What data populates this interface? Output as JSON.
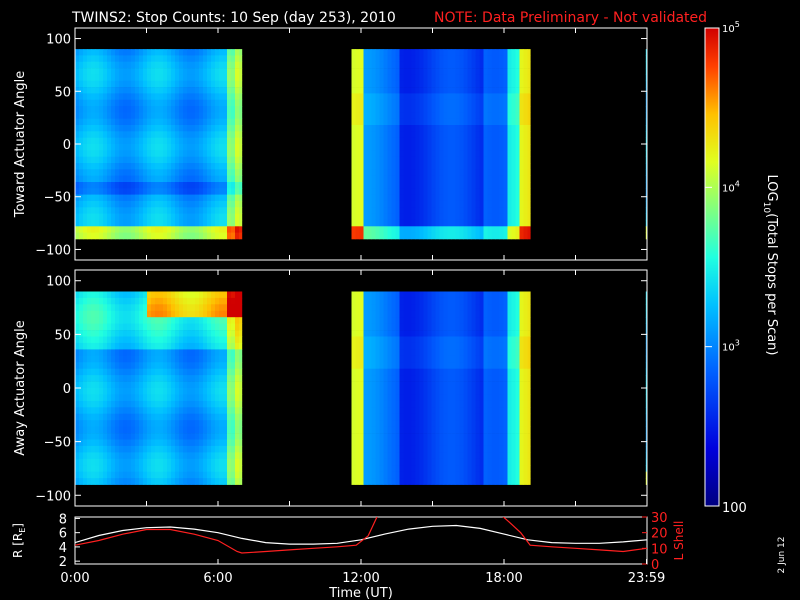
{
  "title": "TWINS2: Stop Counts: 10 Sep (day 253), 2010",
  "note": "NOTE: Data Preliminary - Not validated",
  "side_date": "2 Jun 12",
  "colors": {
    "note": "#ff2020",
    "lshell": "#ff2020",
    "radius": "#ffffff"
  },
  "colorbar": {
    "label": "LOG10(Total Stops per Scan)",
    "label_prefix": "LOG",
    "label_sub": "10",
    "label_rest": "(Total Stops per Scan)",
    "scale": "log",
    "range": [
      100,
      100000
    ],
    "ticks": [
      {
        "value": 100000,
        "label": "10",
        "exp": "5"
      },
      {
        "value": 10000,
        "label": "10",
        "exp": "4"
      },
      {
        "value": 1000,
        "label": "10",
        "exp": "3"
      },
      {
        "value": 100,
        "label": "100",
        "exp": ""
      }
    ]
  },
  "chart_data": [
    {
      "type": "heatmap",
      "ylabel": "Toward Actuator Angle",
      "ylim": [
        -110,
        110
      ],
      "yticks": [
        {
          "v": 100,
          "label": "100"
        },
        {
          "v": 50,
          "label": "50"
        },
        {
          "v": 0,
          "label": "0"
        },
        {
          "v": -50,
          "label": "−50"
        },
        {
          "v": -100,
          "label": "−100"
        }
      ],
      "xlim": [
        0,
        24
      ],
      "data_y_range": [
        -90,
        90
      ],
      "data_time_blocks": [
        [
          0,
          7.0
        ],
        [
          11.6,
          19.1
        ],
        [
          23.95,
          24.0
        ]
      ]
    },
    {
      "type": "heatmap",
      "ylabel": "Away Actuator Angle",
      "ylim": [
        -110,
        110
      ],
      "yticks": [
        {
          "v": 100,
          "label": "100"
        },
        {
          "v": 50,
          "label": "50"
        },
        {
          "v": 0,
          "label": "0"
        },
        {
          "v": -50,
          "label": "−50"
        },
        {
          "v": -100,
          "label": "−100"
        }
      ],
      "xlim": [
        0,
        24
      ],
      "data_y_range": [
        -90,
        90
      ],
      "data_time_blocks": [
        [
          0,
          7.0
        ],
        [
          11.6,
          19.1
        ],
        [
          23.95,
          24.0
        ]
      ]
    },
    {
      "type": "line",
      "xlabel": "Time (UT)",
      "xlim": [
        0,
        24
      ],
      "xticks": [
        {
          "v": 0,
          "label": "0:00"
        },
        {
          "v": 6,
          "label": "6:00"
        },
        {
          "v": 12,
          "label": "12:00"
        },
        {
          "v": 18,
          "label": "18:00"
        },
        {
          "v": 23.98,
          "label": "23:59"
        }
      ],
      "ylabel": "R [RE]",
      "ylabel_prefix": "R [R",
      "ylabel_sub": "E",
      "ylabel_suffix": "]",
      "ylim": [
        1.6,
        8.2
      ],
      "yticks": [
        {
          "v": 2,
          "label": "2"
        },
        {
          "v": 4,
          "label": "4"
        },
        {
          "v": 6,
          "label": "6"
        },
        {
          "v": 8,
          "label": "8"
        }
      ],
      "y2label": "L Shell",
      "y2lim": [
        0,
        30
      ],
      "y2ticks": [
        {
          "v": 0,
          "label": "0"
        },
        {
          "v": 10,
          "label": "10"
        },
        {
          "v": 20,
          "label": "20"
        },
        {
          "v": 30,
          "label": "30"
        }
      ],
      "series": [
        {
          "axis": "left",
          "color": "#ffffff",
          "x": [
            0,
            1,
            2,
            3,
            4,
            5,
            6,
            7,
            8,
            9,
            10,
            11,
            12,
            13,
            14,
            15,
            16,
            17,
            18,
            19,
            20,
            21,
            22,
            23,
            24
          ],
          "y": [
            4.6,
            5.6,
            6.3,
            6.7,
            6.8,
            6.5,
            6.0,
            5.2,
            4.6,
            4.4,
            4.4,
            4.5,
            5.0,
            5.8,
            6.5,
            6.9,
            7.0,
            6.6,
            5.8,
            5.0,
            4.6,
            4.5,
            4.5,
            4.7,
            5.0
          ]
        },
        {
          "axis": "right",
          "color": "#ff2020",
          "x": [
            0,
            1,
            2,
            3,
            4,
            5,
            6,
            6.8,
            7,
            8,
            9,
            10,
            11,
            11.8,
            12.3,
            12.7,
            17.9,
            18.2,
            18.7,
            19.1,
            20,
            21,
            22,
            23,
            24
          ],
          "y": [
            12,
            15,
            19,
            22,
            22,
            19,
            15,
            8,
            7,
            8,
            9,
            10,
            11,
            12,
            18,
            31,
            31,
            27,
            20,
            12,
            11,
            10,
            9,
            8,
            10
          ]
        }
      ]
    }
  ]
}
